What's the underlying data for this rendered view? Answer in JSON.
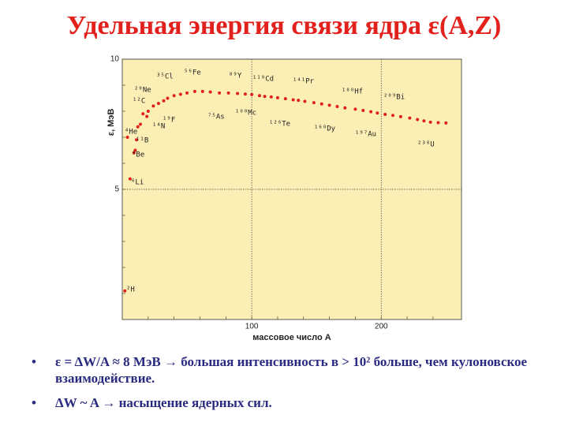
{
  "title": "Удельная энергия связи ядра ε(A,Z)",
  "bullets": [
    "ε = ΔW/A ≈ 8 МэВ → большая интенсивность в > 10² больше, чем кулоновское взаимодействие.",
    "ΔW ~ A → насыщение ядерных сил."
  ],
  "chart_data": {
    "type": "scatter",
    "xlabel": "массовое число A",
    "ylabel": "ε, МэВ",
    "xlim": [
      0,
      262
    ],
    "ylim": [
      0,
      10
    ],
    "xticks": [
      100,
      200
    ],
    "yticks": [
      5,
      10
    ],
    "grid": true,
    "series": [
      {
        "color": "#e0201c",
        "x": [
          2,
          4,
          6,
          9,
          10,
          11,
          12,
          14,
          16,
          19,
          20,
          24,
          28,
          32,
          35,
          40,
          45,
          50,
          56,
          62,
          68,
          75,
          82,
          89,
          95,
          100,
          106,
          110,
          115,
          120,
          126,
          132,
          136,
          141,
          148,
          154,
          160,
          166,
          172,
          180,
          186,
          192,
          197,
          203,
          209,
          215,
          222,
          228,
          233,
          238,
          244,
          250
        ],
        "values": [
          1.1,
          7.0,
          5.4,
          6.4,
          6.5,
          6.9,
          7.4,
          7.5,
          7.9,
          7.8,
          8.0,
          8.2,
          8.3,
          8.4,
          8.5,
          8.6,
          8.65,
          8.7,
          8.76,
          8.76,
          8.74,
          8.7,
          8.7,
          8.68,
          8.66,
          8.64,
          8.6,
          8.57,
          8.55,
          8.52,
          8.48,
          8.44,
          8.42,
          8.38,
          8.33,
          8.28,
          8.23,
          8.18,
          8.13,
          8.08,
          8.03,
          7.98,
          7.93,
          7.88,
          7.84,
          7.79,
          7.74,
          7.68,
          7.63,
          7.58,
          7.56,
          7.55
        ]
      }
    ],
    "annotations": [
      "²H",
      "⁴He",
      "⁶Li",
      "⁹Be",
      "¹¹B",
      "¹²C",
      "¹⁴N",
      "¹⁹F",
      "²⁰Ne",
      "³⁵Cl",
      "⁵⁶Fe",
      "⁷⁵As",
      "⁸⁹Y",
      "¹⁰⁰Mc",
      "¹¹⁰Cd",
      "¹²⁶Te",
      "¹⁴¹Pr",
      "¹⁶⁰Dy",
      "¹⁸⁰Hf",
      "¹⁹⁷Au",
      "²⁰⁹Bi",
      "²³⁸U"
    ]
  }
}
